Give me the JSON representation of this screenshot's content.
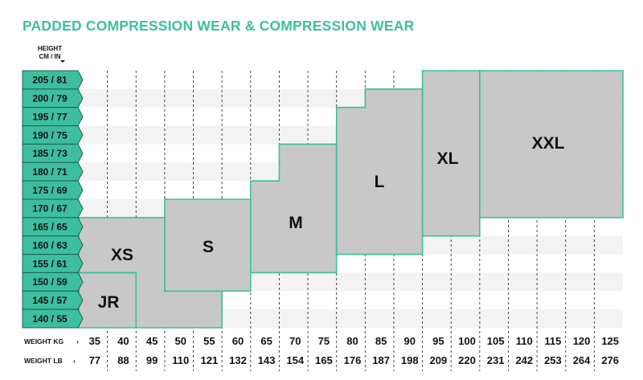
{
  "chart_data": {
    "type": "table",
    "title": "PADDED COMPRESSION WEAR & COMPRESSION WEAR",
    "height_header": [
      "HEIGHT",
      "CM / IN"
    ],
    "height_rows": [
      "205 / 81",
      "200 / 79",
      "195 / 77",
      "190 / 75",
      "185 / 73",
      "180 / 71",
      "175 / 69",
      "170 / 67",
      "165 / 65",
      "160 / 63",
      "155 / 61",
      "150 / 59",
      "145 / 57",
      "140 / 55"
    ],
    "height_cm": [
      205,
      200,
      195,
      190,
      185,
      180,
      175,
      170,
      165,
      160,
      155,
      150,
      145,
      140
    ],
    "weight_kg_label": "WEIGHT KG",
    "weight_lb_label": "WEIGHT LB",
    "weight_kg": [
      "35",
      "40",
      "45",
      "50",
      "55",
      "60",
      "65",
      "70",
      "75",
      "80",
      "85",
      "90",
      "95",
      "100",
      "105",
      "110",
      "115",
      "120",
      "125"
    ],
    "weight_lb": [
      "77",
      "88",
      "99",
      "110",
      "121",
      "132",
      "143",
      "154",
      "165",
      "176",
      "187",
      "198",
      "209",
      "220",
      "231",
      "242",
      "253",
      "264",
      "276"
    ],
    "sizes": [
      {
        "name": "JR",
        "columns": [
          {
            "kg": 35,
            "cm": [
              140,
              150
            ]
          },
          {
            "kg": 40,
            "cm": [
              140,
              150
            ]
          }
        ]
      },
      {
        "name": "XS",
        "columns": [
          {
            "kg": 35,
            "cm": [
              155,
              165
            ]
          },
          {
            "kg": 40,
            "cm": [
              155,
              165
            ]
          },
          {
            "kg": 45,
            "cm": [
              140,
              165
            ]
          },
          {
            "kg": 50,
            "cm": [
              140,
              145
            ]
          },
          {
            "kg": 55,
            "cm": [
              140,
              145
            ]
          }
        ]
      },
      {
        "name": "S",
        "columns": [
          {
            "kg": 50,
            "cm": [
              150,
              170
            ]
          },
          {
            "kg": 55,
            "cm": [
              150,
              170
            ]
          },
          {
            "kg": 60,
            "cm": [
              150,
              170
            ]
          }
        ]
      },
      {
        "name": "M",
        "columns": [
          {
            "kg": 65,
            "cm": [
              155,
              175
            ]
          },
          {
            "kg": 70,
            "cm": [
              155,
              185
            ]
          },
          {
            "kg": 75,
            "cm": [
              155,
              185
            ]
          }
        ]
      },
      {
        "name": "L",
        "columns": [
          {
            "kg": 80,
            "cm": [
              160,
              195
            ]
          },
          {
            "kg": 85,
            "cm": [
              160,
              200
            ]
          },
          {
            "kg": 90,
            "cm": [
              160,
              200
            ]
          }
        ]
      },
      {
        "name": "XL",
        "columns": [
          {
            "kg": 95,
            "cm": [
              165,
              205
            ]
          },
          {
            "kg": 100,
            "cm": [
              165,
              205
            ]
          }
        ]
      },
      {
        "name": "XXL",
        "columns": [
          {
            "kg": 105,
            "cm": [
              170,
              205
            ]
          },
          {
            "kg": 110,
            "cm": [
              170,
              205
            ]
          },
          {
            "kg": 115,
            "cm": [
              170,
              205
            ]
          },
          {
            "kg": 120,
            "cm": [
              170,
              205
            ]
          },
          {
            "kg": 125,
            "cm": [
              170,
              205
            ]
          }
        ]
      }
    ],
    "colors": {
      "accent": "#3dbf9f",
      "tag_border": "#1d5f50",
      "size_fill": "#c8c8c8",
      "stripe": "#f3f3f3",
      "text": "#111111"
    }
  }
}
